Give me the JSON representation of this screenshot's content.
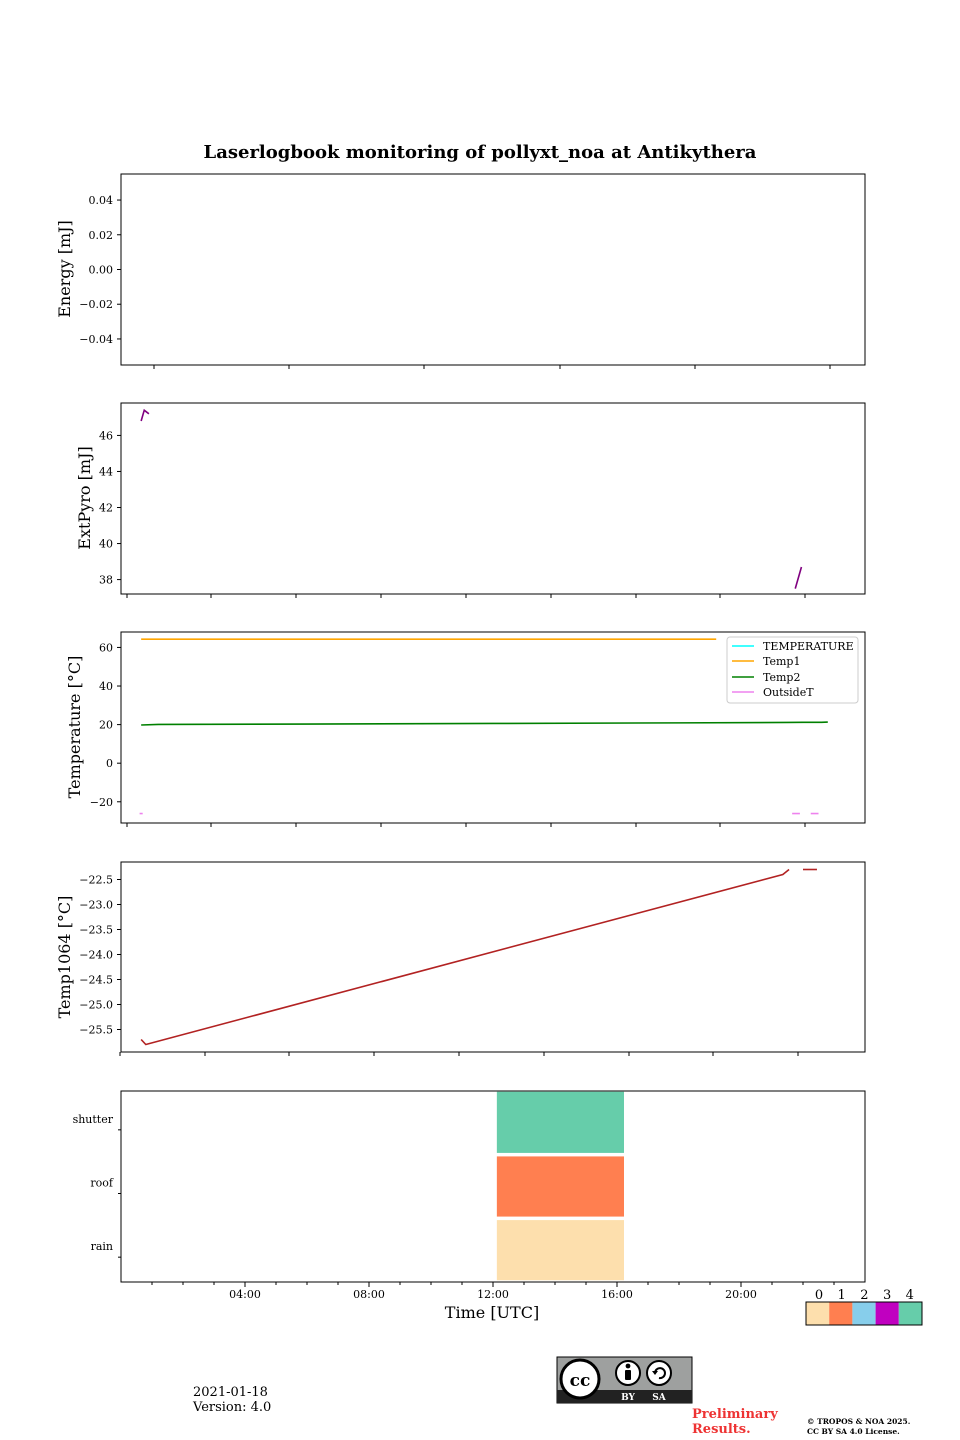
{
  "figure": {
    "title": "Laserlogbook monitoring of pollyxt_noa at Antikythera",
    "xlabel": "Time [UTC]",
    "x_ticks": [
      "04:00",
      "08:00",
      "12:00",
      "16:00",
      "20:00"
    ]
  },
  "footer": {
    "date": "2021-01-18",
    "version": "Version: 4.0",
    "license_badge": {
      "by": "BY",
      "sa": "SA"
    },
    "preliminary": [
      "Preliminary",
      "Results."
    ],
    "copyright": [
      "© TROPOS & NOA 2025.",
      "CC BY SA 4.0 License."
    ]
  },
  "colors": {
    "purple": "#800080",
    "orange": "#ffa500",
    "green": "#008000",
    "cyan": "#00ffff",
    "violet": "#ee82ee",
    "brown": "#b22222"
  },
  "chart_data": [
    {
      "type": "line",
      "ylabel": "Energy [mJ]",
      "ylim": [
        -0.055,
        0.055
      ],
      "yticks": [
        0.04,
        0.02,
        0.0,
        -0.02,
        -0.04
      ],
      "ytick_labels": [
        "0.04",
        "0.02",
        "0.00",
        "−0.02",
        "−0.04"
      ],
      "series": []
    },
    {
      "type": "line",
      "ylabel": "ExtPyro [mJ]",
      "ylim": [
        37.2,
        47.8
      ],
      "yticks": [
        46,
        44,
        42,
        40,
        38
      ],
      "ytick_labels": [
        "46",
        "44",
        "42",
        "40",
        "38"
      ],
      "series": [
        {
          "name": "ExtPyro",
          "color": "#800080",
          "segments": [
            {
              "x": [
                0.65,
                0.75,
                0.9
              ],
              "y": [
                46.8,
                47.4,
                47.2
              ]
            },
            {
              "x": [
                21.75,
                21.95
              ],
              "y": [
                37.5,
                38.7
              ]
            }
          ]
        }
      ]
    },
    {
      "type": "line",
      "ylabel": "Temperature [°C]",
      "ylim": [
        -31,
        68
      ],
      "yticks": [
        60,
        40,
        20,
        0,
        -20
      ],
      "ytick_labels": [
        "60",
        "40",
        "20",
        "0",
        "−20"
      ],
      "legend": [
        "TEMPERATURE",
        "Temp1",
        "Temp2",
        "OutsideT"
      ],
      "series": [
        {
          "name": "TEMPERATURE",
          "color": "#00ffff",
          "segments": []
        },
        {
          "name": "Temp1",
          "color": "#ffa500",
          "segments": [
            {
              "x": [
                0.65,
                19.2
              ],
              "y": [
                64.3,
                64.3
              ]
            }
          ]
        },
        {
          "name": "Temp2",
          "color": "#008000",
          "segments": [
            {
              "x": [
                0.65,
                1.2,
                6,
                12,
                18,
                21.5,
                22,
                22.6,
                22.8
              ],
              "y": [
                19.8,
                20.1,
                20.3,
                20.6,
                20.9,
                21.1,
                21.2,
                21.2,
                21.3
              ]
            }
          ]
        },
        {
          "name": "OutsideT",
          "color": "#ee82ee",
          "segments": [
            {
              "x": [
                0.6,
                0.7
              ],
              "y": [
                -26.1,
                -26.1
              ]
            },
            {
              "x": [
                21.65,
                21.9
              ],
              "y": [
                -26.1,
                -26.1
              ]
            },
            {
              "x": [
                22.25,
                22.5
              ],
              "y": [
                -26.1,
                -26.1
              ]
            }
          ]
        }
      ]
    },
    {
      "type": "line",
      "ylabel": "Temp1064 [°C]",
      "ylim": [
        -25.95,
        -22.15
      ],
      "yticks": [
        -22.5,
        -23.0,
        -23.5,
        -24.0,
        -24.5,
        -25.0,
        -25.5
      ],
      "ytick_labels": [
        "−22.5",
        "−23.0",
        "−23.5",
        "−24.0",
        "−24.5",
        "−25.0",
        "−25.5"
      ],
      "series": [
        {
          "name": "Temp1064",
          "color": "#b22222",
          "segments": [
            {
              "x": [
                0.65,
                0.8,
                21.35,
                21.55
              ],
              "y": [
                -25.7,
                -25.8,
                -22.4,
                -22.3
              ]
            },
            {
              "x": [
                22.0,
                22.45
              ],
              "y": [
                -22.3,
                -22.3
              ]
            }
          ]
        }
      ]
    },
    {
      "type": "heatmap",
      "ycategories": [
        "rain",
        "roof",
        "shutter"
      ],
      "colorbar_labels": [
        "0",
        "1",
        "2",
        "3",
        "4"
      ],
      "colorbar_colors": [
        "#fddfad",
        "#ff7f50",
        "#87ceeb",
        "#c000c0",
        "#66cdaa"
      ],
      "cells": [
        {
          "row": "shutter",
          "x0": 12.1,
          "x1": 16.25,
          "value": 4
        },
        {
          "row": "roof",
          "x0": 12.1,
          "x1": 16.25,
          "value": 1
        },
        {
          "row": "rain",
          "x0": 12.1,
          "x1": 16.25,
          "value": 0
        }
      ]
    }
  ]
}
